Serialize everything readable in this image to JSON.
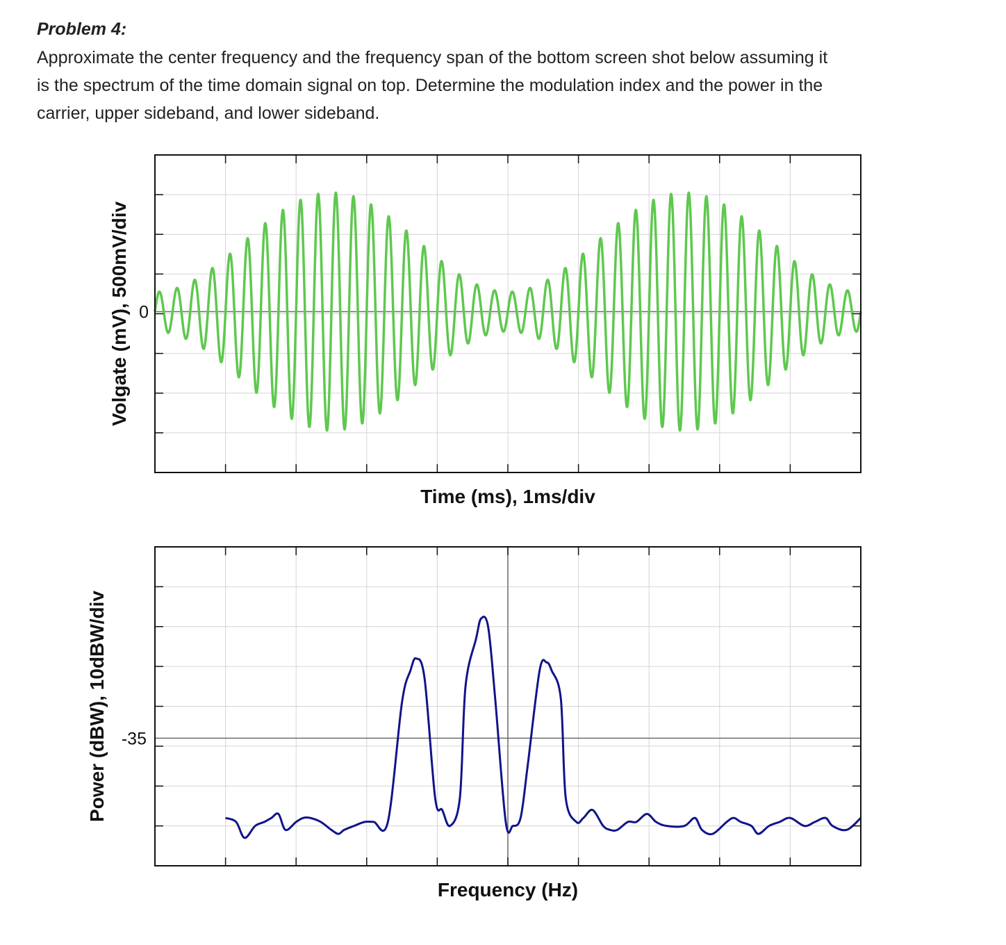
{
  "problem": {
    "title": "Problem 4:",
    "lines": [
      "Approximate the center frequency and the frequency span of the bottom screen shot below assuming it",
      "is the spectrum of the time domain signal on top. Determine the modulation index and the power in the",
      "carrier, upper sideband, and lower sideband."
    ]
  },
  "colors": {
    "time_trace": "#5ec84e",
    "spectrum_trace": "#10148a",
    "grid": "#d4d4d4",
    "zero_line": "#6b6b6b",
    "frame": "#111111"
  },
  "chart_data": [
    {
      "type": "line",
      "title": "",
      "xlabel": "Time (ms), 1ms/div",
      "ylabel": "Volgate (mV), 500mV/div",
      "ytick_labels": [
        {
          "value": 0,
          "label": "0"
        }
      ],
      "x_divisions": 10,
      "y_divisions": 8,
      "units_per_x_division_ms": 1,
      "units_per_y_division_mV": 500,
      "ylim_mV": [
        -2000,
        2000
      ],
      "grid": true,
      "signal": {
        "kind": "AM",
        "carrier_cycles_over_10_div": 40,
        "envelope_cycles_over_10_div": 2,
        "envelope_peak_mV": 1500,
        "envelope_min_mV": 250,
        "envelope_peak_times_ms": [
          2.5,
          7.5
        ]
      }
    },
    {
      "type": "line",
      "title": "",
      "xlabel": "Frequency (Hz)",
      "ylabel": "Power (dBW), 10dBW/div",
      "ytick_labels": [
        {
          "value": -35,
          "label": "-35"
        }
      ],
      "x_divisions": 10,
      "y_divisions": 8,
      "units_per_y_division_dBW": 10,
      "ylim_dBW": [
        -67,
        13
      ],
      "grid": true,
      "peaks": [
        {
          "name": "lower sideband",
          "x_div": 4,
          "power_dBW": -16
        },
        {
          "name": "carrier",
          "x_div": 5,
          "power_dBW": -5
        },
        {
          "name": "upper sideband",
          "x_div": 6,
          "power_dBW": -16
        }
      ],
      "noise_floor_dBW": -56,
      "trace_x_div": [
        1.0,
        1.15,
        1.27,
        1.42,
        1.55,
        1.65,
        1.75,
        1.85,
        2.0,
        2.1,
        2.2,
        2.35,
        2.5,
        2.6,
        2.68,
        2.82,
        2.97,
        3.1,
        3.3,
        3.5,
        3.62,
        3.7,
        3.82,
        3.97,
        4.07,
        4.18,
        4.32,
        4.4,
        4.55,
        4.62,
        4.72,
        4.82,
        4.97,
        5.07,
        5.18,
        5.28,
        5.45,
        5.55,
        5.62,
        5.75,
        5.82,
        5.97,
        6.07,
        6.2,
        6.35,
        6.45,
        6.55,
        6.7,
        6.82,
        6.97,
        7.1,
        7.25,
        7.5,
        7.65,
        7.75,
        7.9,
        8.1,
        8.2,
        8.3,
        8.45,
        8.55,
        8.7,
        8.85,
        9.0,
        9.2,
        9.35,
        9.5,
        9.6,
        9.8,
        10.0
      ],
      "trace_dBW": [
        -55,
        -56,
        -60,
        -57,
        -56,
        -55,
        -54,
        -58,
        -56,
        -55,
        -55,
        -56,
        -58,
        -59,
        -58,
        -57,
        -56,
        -56,
        -56,
        -26,
        -18,
        -15,
        -20,
        -50,
        -53,
        -57,
        -50,
        -22,
        -10,
        -5,
        -7,
        -25,
        -56,
        -57,
        -55,
        -42,
        -18,
        -16,
        -18,
        -25,
        -50,
        -56,
        -55,
        -53,
        -57,
        -58,
        -58,
        -56,
        -56,
        -54,
        -56,
        -57,
        -57,
        -55,
        -58,
        -59,
        -56,
        -55,
        -56,
        -57,
        -59,
        -57,
        -56,
        -55,
        -57,
        -56,
        -55,
        -57,
        -58,
        -55
      ]
    }
  ]
}
